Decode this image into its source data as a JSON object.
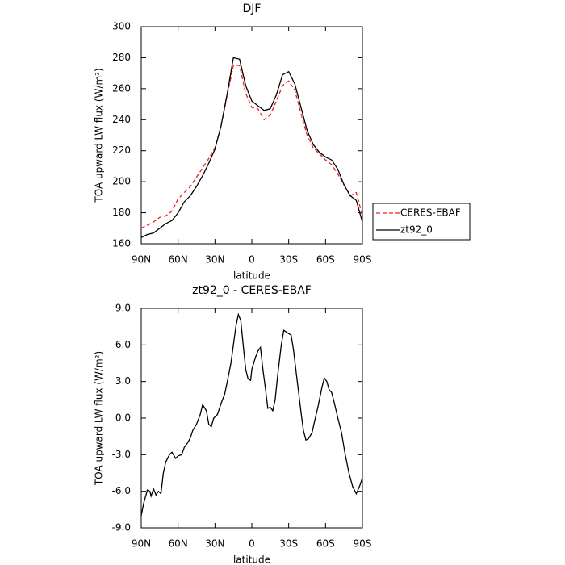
{
  "chart_data": [
    {
      "type": "line",
      "title": "DJF",
      "xlabel": "latitude",
      "ylabel": "TOA upward LW flux (W/m²)",
      "x": [
        90,
        85,
        80,
        75,
        70,
        65,
        60,
        55,
        50,
        45,
        40,
        35,
        30,
        25,
        20,
        15,
        10,
        5,
        0,
        -5,
        -10,
        -15,
        -20,
        -25,
        -30,
        -35,
        -40,
        -45,
        -50,
        -55,
        -60,
        -65,
        -70,
        -75,
        -80,
        -85,
        -90
      ],
      "series": [
        {
          "name": "CERES-EBAF",
          "color": "#e8211d",
          "style": "dashed",
          "values": [
            170,
            172,
            174,
            177,
            178,
            181,
            189,
            193,
            197,
            203,
            209,
            215,
            222,
            236,
            256,
            275,
            275,
            257,
            248,
            247,
            240,
            243,
            252,
            262,
            265,
            259,
            244,
            230,
            222,
            218,
            214,
            211,
            205,
            198,
            191,
            193,
            178
          ]
        },
        {
          "name": "zt92_0",
          "color": "#000000",
          "style": "solid",
          "values": [
            164,
            166,
            167,
            170,
            173,
            175,
            180,
            187,
            191,
            197,
            204,
            212,
            221,
            236,
            257,
            280,
            279,
            262,
            252,
            249,
            246,
            247,
            256,
            269,
            271,
            263,
            248,
            233,
            224,
            219,
            216,
            214,
            208,
            198,
            191,
            188,
            174
          ]
        }
      ],
      "xlim": [
        90,
        -90
      ],
      "xticks": [
        {
          "value": 90,
          "label": "90N"
        },
        {
          "value": 60,
          "label": "60N"
        },
        {
          "value": 30,
          "label": "30N"
        },
        0,
        {
          "value": -30,
          "label": "30S"
        },
        {
          "value": -60,
          "label": "60S"
        },
        {
          "value": -90,
          "label": "90S"
        }
      ],
      "ylim": [
        160,
        300
      ],
      "yticks": [
        160,
        180,
        200,
        220,
        240,
        260,
        280,
        300
      ],
      "legend": "outside right"
    },
    {
      "type": "line",
      "title": "zt92_0 - CERES-EBAF",
      "xlabel": "latitude",
      "ylabel": "TOA upward LW flux (W/m²)",
      "x": [
        90,
        88,
        85,
        83,
        82,
        80,
        78,
        76,
        74,
        72,
        70,
        67,
        65,
        62,
        60,
        57,
        55,
        52,
        50,
        48,
        45,
        42,
        40,
        37,
        35,
        33,
        31,
        28,
        25,
        22,
        20,
        17,
        15,
        13,
        11,
        9,
        7,
        5,
        3,
        1,
        0,
        -3,
        -5,
        -7,
        -9,
        -11,
        -13,
        -15,
        -17,
        -19,
        -21,
        -24,
        -26,
        -29,
        -32,
        -34,
        -37,
        -40,
        -42,
        -44,
        -46,
        -49,
        -51,
        -54,
        -57,
        -59,
        -61,
        -63,
        -65,
        -67,
        -70,
        -73,
        -76,
        -79,
        -82,
        -85,
        -88,
        -90
      ],
      "series": [
        {
          "color": "#000000",
          "style": "solid",
          "values": [
            -8.0,
            -7.0,
            -5.9,
            -6.0,
            -6.4,
            -5.8,
            -6.3,
            -6.0,
            -6.2,
            -4.5,
            -3.6,
            -3.0,
            -2.8,
            -3.3,
            -3.1,
            -3.0,
            -2.4,
            -2.0,
            -1.6,
            -1.0,
            -0.5,
            0.3,
            1.1,
            0.6,
            -0.5,
            -0.7,
            0.0,
            0.3,
            1.2,
            2.0,
            3.0,
            4.5,
            6.0,
            7.5,
            8.5,
            8.0,
            6.0,
            4.0,
            3.2,
            3.1,
            4.0,
            5.0,
            5.5,
            5.8,
            4.0,
            2.5,
            0.8,
            0.9,
            0.6,
            1.5,
            3.5,
            6.0,
            7.2,
            7.0,
            6.8,
            5.5,
            3.0,
            0.5,
            -1.0,
            -1.8,
            -1.7,
            -1.2,
            -0.3,
            1.0,
            2.5,
            3.3,
            3.0,
            2.3,
            2.1,
            1.3,
            0.0,
            -1.2,
            -3.0,
            -4.5,
            -5.6,
            -6.2,
            -5.5,
            -4.9
          ]
        }
      ],
      "xlim": [
        90,
        -90
      ],
      "xticks": [
        {
          "value": 90,
          "label": "90N"
        },
        {
          "value": 60,
          "label": "60N"
        },
        {
          "value": 30,
          "label": "30N"
        },
        0,
        {
          "value": -30,
          "label": "30S"
        },
        {
          "value": -60,
          "label": "60S"
        },
        {
          "value": -90,
          "label": "90S"
        }
      ],
      "ylim": [
        -9,
        9
      ],
      "yticks": [
        {
          "value": -9,
          "label": "-9.0"
        },
        {
          "value": -6,
          "label": "-6.0"
        },
        {
          "value": -3,
          "label": "-3.0"
        },
        {
          "value": 0,
          "label": "0.0"
        },
        {
          "value": 3,
          "label": "3.0"
        },
        {
          "value": 6,
          "label": "6.0"
        },
        {
          "value": 9,
          "label": "9.0"
        }
      ]
    }
  ]
}
